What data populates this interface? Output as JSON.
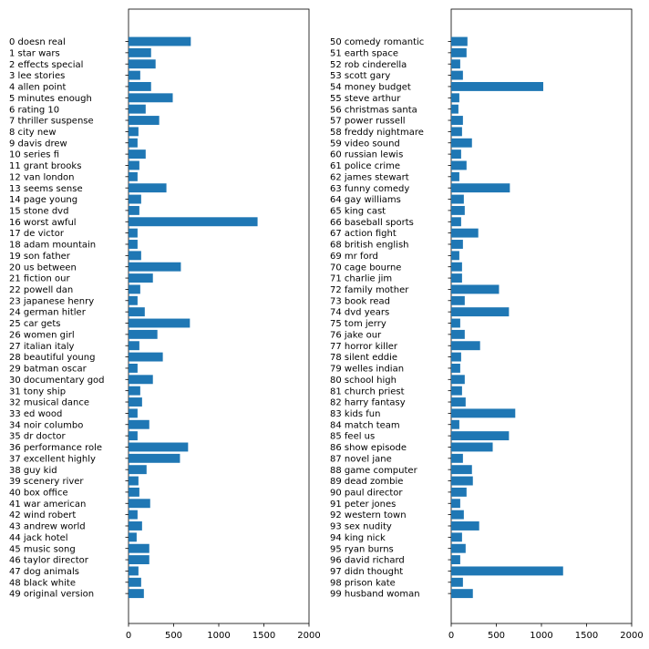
{
  "chart_data": [
    {
      "type": "bar",
      "orientation": "horizontal",
      "xlim": [
        0,
        2000
      ],
      "xticks": [
        "0",
        "500",
        "1000",
        "1500",
        "2000"
      ],
      "bar_color": "#1f77b4",
      "grid": false,
      "categories": [
        "0 doesn real",
        "1 star wars",
        "2 effects special",
        "3 lee stories",
        "4 allen point",
        "5 minutes enough",
        "6 rating 10",
        "7 thriller suspense",
        "8 city new",
        "9 davis drew",
        "10 series fi",
        "11 grant brooks",
        "12 van london",
        "13 seems sense",
        "14 page young",
        "15 stone dvd",
        "16 worst awful",
        "17 de victor",
        "18 adam mountain",
        "19 son father",
        "20 us between",
        "21 fiction our",
        "22 powell dan",
        "23 japanese henry",
        "24 german hitler",
        "25 car gets",
        "26 women girl",
        "27 italian italy",
        "28 beautiful young",
        "29 batman oscar",
        "30 documentary god",
        "31 tony ship",
        "32 musical dance",
        "33 ed wood",
        "34 noir columbo",
        "35 dr doctor",
        "36 performance role",
        "37 excellent highly",
        "38 guy kid",
        "39 scenery river",
        "40 box office",
        "41 war american",
        "42 wind robert",
        "43 andrew world",
        "44 jack hotel",
        "45 music song",
        "46 taylor director",
        "47 dog animals",
        "48 black white",
        "49 original version"
      ],
      "values": [
        690,
        250,
        300,
        130,
        250,
        490,
        190,
        340,
        110,
        100,
        190,
        120,
        100,
        420,
        140,
        120,
        1430,
        100,
        100,
        140,
        580,
        270,
        130,
        100,
        180,
        680,
        320,
        120,
        380,
        100,
        270,
        130,
        150,
        100,
        230,
        100,
        660,
        570,
        200,
        110,
        120,
        240,
        100,
        150,
        90,
        230,
        230,
        110,
        140,
        170
      ]
    },
    {
      "type": "bar",
      "orientation": "horizontal",
      "xlim": [
        0,
        2000
      ],
      "xticks": [
        "0",
        "500",
        "1000",
        "1500",
        "2000"
      ],
      "bar_color": "#1f77b4",
      "grid": false,
      "categories": [
        "50 comedy romantic",
        "51 earth space",
        "52 rob cinderella",
        "53 scott gary",
        "54 money budget",
        "55 steve arthur",
        "56 christmas santa",
        "57 power russell",
        "58 freddy nightmare",
        "59 video sound",
        "60 russian lewis",
        "61 police crime",
        "62 james stewart",
        "63 funny comedy",
        "64 gay williams",
        "65 king cast",
        "66 baseball sports",
        "67 action fight",
        "68 british english",
        "69 mr ford",
        "70 cage bourne",
        "71 charlie jim",
        "72 family mother",
        "73 book read",
        "74 dvd years",
        "75 tom jerry",
        "76 jake our",
        "77 horror killer",
        "78 silent eddie",
        "79 welles indian",
        "80 school high",
        "81 church priest",
        "82 harry fantasy",
        "83 kids fun",
        "84 match team",
        "85 feel us",
        "86 show episode",
        "87 novel jane",
        "88 game computer",
        "89 dead zombie",
        "90 paul director",
        "91 peter jones",
        "92 western town",
        "93 sex nudity",
        "94 king nick",
        "95 ryan burns",
        "96 david richard",
        "97 didn thought",
        "98 prison kate",
        "99 husband woman"
      ],
      "values": [
        180,
        170,
        100,
        130,
        1020,
        90,
        80,
        130,
        120,
        230,
        110,
        170,
        90,
        650,
        140,
        150,
        110,
        300,
        130,
        90,
        120,
        120,
        530,
        150,
        640,
        100,
        150,
        320,
        110,
        100,
        150,
        120,
        160,
        710,
        90,
        640,
        460,
        130,
        230,
        240,
        170,
        100,
        140,
        310,
        120,
        160,
        100,
        1240,
        130,
        240
      ]
    }
  ]
}
